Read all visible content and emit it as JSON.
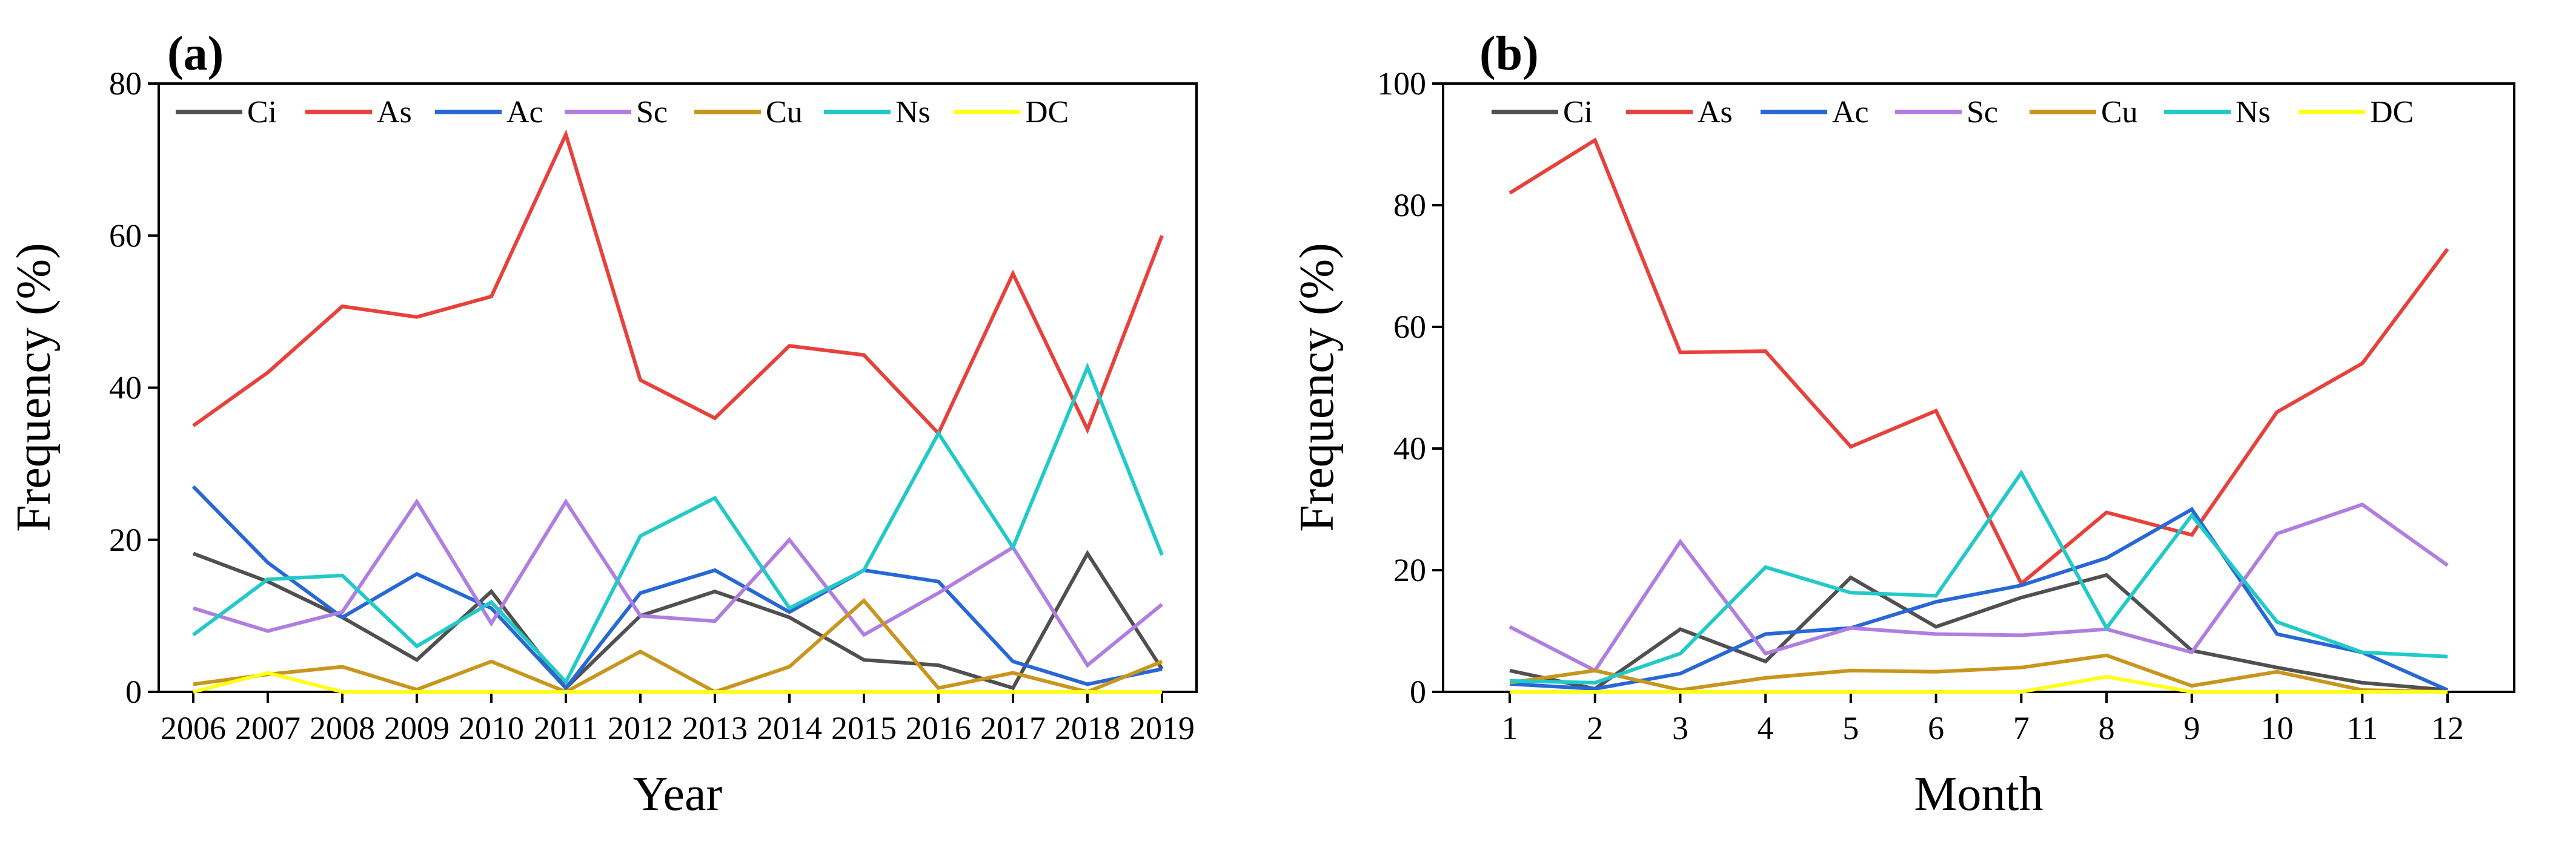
{
  "colors": {
    "Ci": "#505050",
    "As": "#e8413c",
    "Ac": "#2767d6",
    "Sc": "#b07ee0",
    "Cu": "#c8961c",
    "Ns": "#22c9c9",
    "DC": "#ffff1a"
  },
  "chart_data": [
    {
      "type": "line",
      "panel_label": "(a)",
      "xlabel": "Year",
      "ylabel": "Frequency (%)",
      "x": [
        "2006",
        "2007",
        "2008",
        "2009",
        "2010",
        "2011",
        "2012",
        "2013",
        "2014",
        "2015",
        "2016",
        "2017",
        "2018",
        "2019"
      ],
      "ylim": [
        0,
        80
      ],
      "yticks": [
        "0",
        "20",
        "40",
        "60",
        "80"
      ],
      "legend_position": "top",
      "series": [
        {
          "name": "Ci",
          "values": [
            18.2,
            14.5,
            9.8,
            4.2,
            13.2,
            0.5,
            10.0,
            13.2,
            9.8,
            4.2,
            3.5,
            0.5,
            18.2,
            3.0
          ]
        },
        {
          "name": "As",
          "values": [
            35.0,
            42.0,
            50.7,
            49.3,
            52.0,
            73.3,
            41.0,
            36.0,
            45.5,
            44.3,
            34.0,
            55.0,
            34.5,
            60.0
          ]
        },
        {
          "name": "Ac",
          "values": [
            27.0,
            17.0,
            9.8,
            15.5,
            11.0,
            0.5,
            13.0,
            16.0,
            10.5,
            16.0,
            14.5,
            4.0,
            1.0,
            3.0
          ]
        },
        {
          "name": "Sc",
          "values": [
            11.0,
            8.0,
            10.5,
            25.0,
            9.0,
            25.0,
            10.0,
            9.3,
            20.0,
            7.5,
            13.0,
            19.0,
            3.5,
            11.5
          ]
        },
        {
          "name": "Cu",
          "values": [
            1.0,
            2.3,
            3.3,
            0.3,
            4.0,
            0.0,
            5.3,
            0.0,
            3.3,
            12.0,
            0.5,
            2.5,
            0.0,
            4.0
          ]
        },
        {
          "name": "Ns",
          "values": [
            7.5,
            14.8,
            15.3,
            6.0,
            11.8,
            1.3,
            20.5,
            25.5,
            11.0,
            16.0,
            34.0,
            19.0,
            42.7,
            18.0
          ]
        },
        {
          "name": "DC",
          "values": [
            0.0,
            2.5,
            0.0,
            0.0,
            0.0,
            0.0,
            0.0,
            0.0,
            0.0,
            0.0,
            0.0,
            0.0,
            0.0,
            0.0
          ]
        }
      ]
    },
    {
      "type": "line",
      "panel_label": "(b)",
      "xlabel": "Month",
      "ylabel": "Frequency (%)",
      "x": [
        "1",
        "2",
        "3",
        "4",
        "5",
        "6",
        "7",
        "8",
        "9",
        "10",
        "11",
        "12"
      ],
      "ylim": [
        0,
        100
      ],
      "yticks": [
        "0",
        "20",
        "40",
        "60",
        "80",
        "100"
      ],
      "legend_position": "top",
      "series": [
        {
          "name": "Ci",
          "values": [
            3.5,
            0.5,
            10.3,
            5.0,
            18.8,
            10.7,
            15.5,
            19.2,
            6.8,
            4.0,
            1.5,
            0.3
          ]
        },
        {
          "name": "As",
          "values": [
            82.0,
            90.7,
            55.8,
            56.0,
            40.3,
            46.2,
            17.8,
            29.5,
            25.8,
            46.0,
            54.0,
            72.8
          ]
        },
        {
          "name": "Ac",
          "values": [
            1.3,
            0.5,
            3.0,
            9.5,
            10.5,
            14.8,
            17.5,
            22.0,
            30.0,
            9.5,
            6.5,
            0.3
          ]
        },
        {
          "name": "Sc",
          "values": [
            10.7,
            3.5,
            24.7,
            6.3,
            10.5,
            9.5,
            9.3,
            10.3,
            6.5,
            26.0,
            30.8,
            20.8
          ]
        },
        {
          "name": "Cu",
          "values": [
            1.5,
            3.5,
            0.3,
            2.3,
            3.5,
            3.3,
            4.0,
            6.0,
            1.0,
            3.3,
            0.3,
            0.0
          ]
        },
        {
          "name": "Ns",
          "values": [
            1.8,
            1.5,
            6.3,
            20.5,
            16.3,
            15.8,
            36.0,
            10.5,
            29.0,
            11.5,
            6.5,
            5.8
          ]
        },
        {
          "name": "DC",
          "values": [
            0.0,
            0.0,
            0.0,
            0.0,
            0.0,
            0.0,
            0.0,
            2.5,
            0.0,
            0.0,
            0.0,
            0.0
          ]
        }
      ]
    }
  ]
}
